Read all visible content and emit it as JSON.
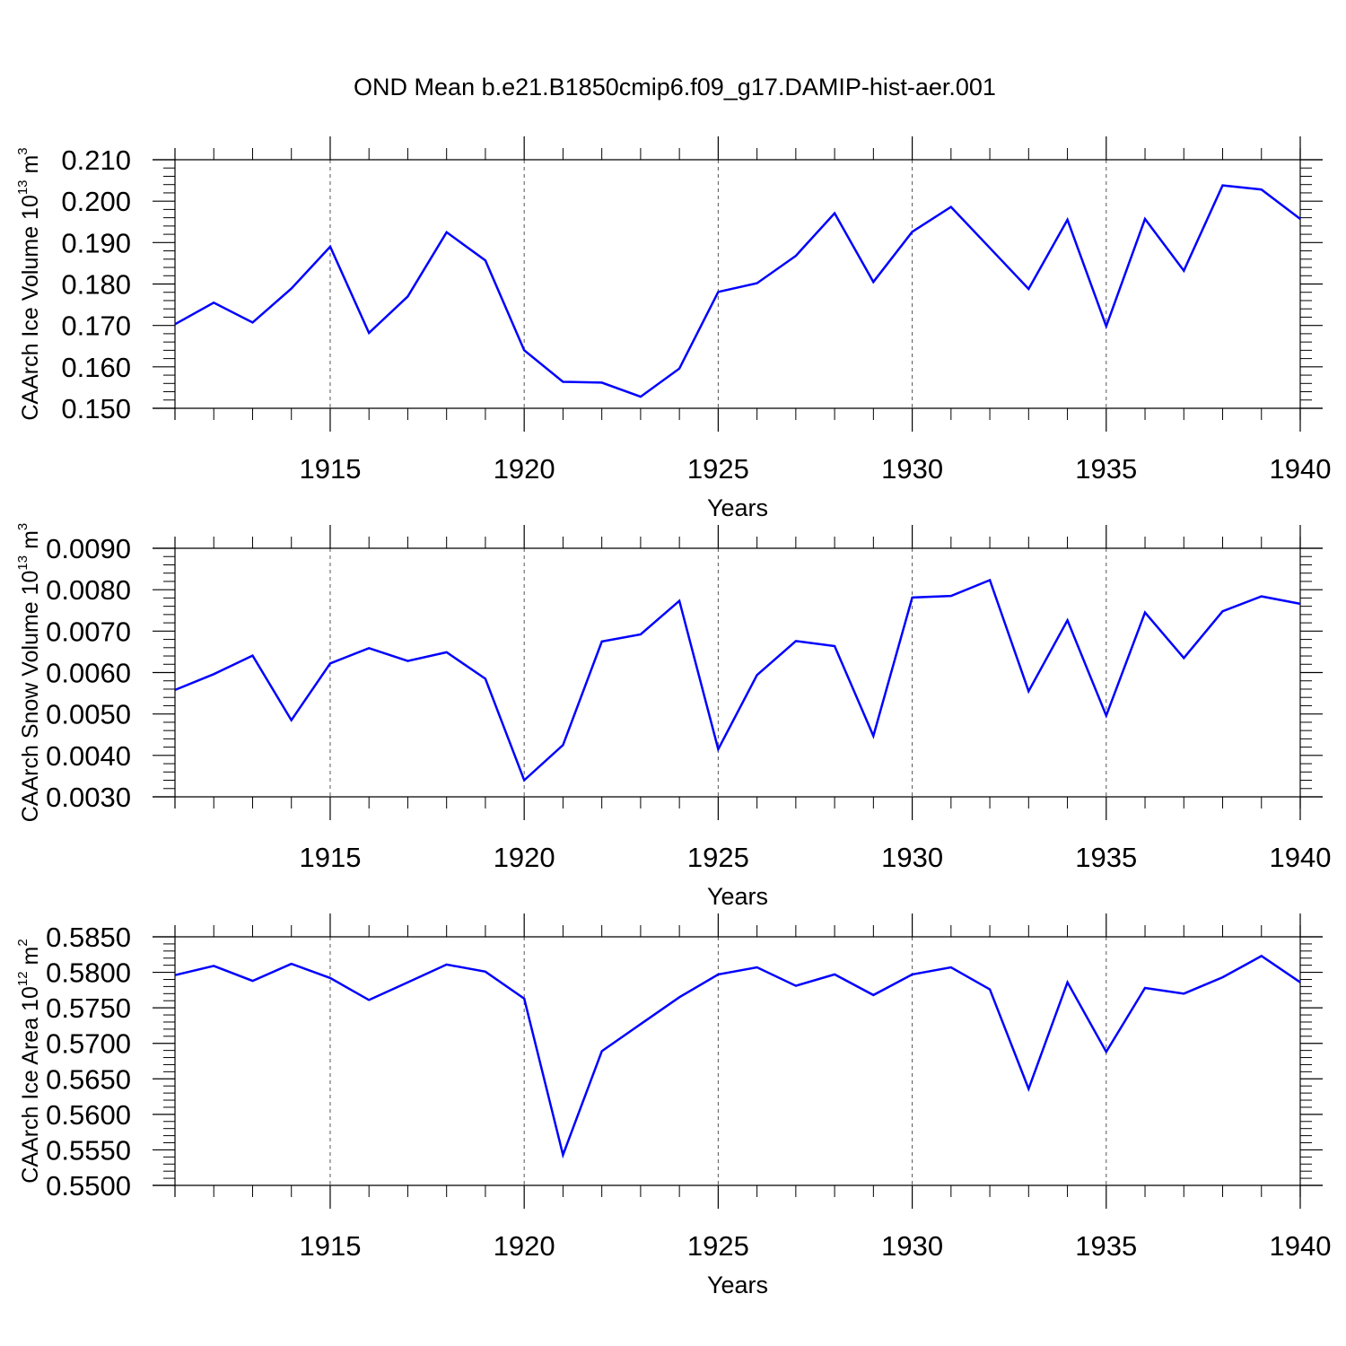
{
  "title": "OND Mean b.e21.B1850cmip6.f09_g17.DAMIP-hist-aer.001",
  "chart_data": [
    {
      "type": "line",
      "name": "ice-volume",
      "ylabel": {
        "prefix": "CAArch Ice Volume 10",
        "exp1": "13",
        "unit": " m",
        "exp2": "3"
      },
      "xlabel": "Years",
      "xlim": [
        1911,
        1940
      ],
      "ylim": [
        0.15,
        0.21
      ],
      "xticks": [
        1915,
        1920,
        1925,
        1930,
        1935,
        1940
      ],
      "xtick_labels": [
        "1915",
        "1920",
        "1925",
        "1930",
        "1935",
        "1940"
      ],
      "yticks": [
        0.15,
        0.16,
        0.17,
        0.18,
        0.19,
        0.2,
        0.21
      ],
      "ytick_labels": [
        "0.150",
        "0.160",
        "0.170",
        "0.180",
        "0.190",
        "0.200",
        "0.210"
      ],
      "x": [
        1911,
        1912,
        1913,
        1914,
        1915,
        1916,
        1917,
        1918,
        1919,
        1920,
        1921,
        1922,
        1923,
        1924,
        1925,
        1926,
        1927,
        1928,
        1929,
        1930,
        1931,
        1932,
        1933,
        1934,
        1935,
        1936,
        1937,
        1938,
        1939,
        1940
      ],
      "values": [
        0.1703,
        0.1755,
        0.1707,
        0.1789,
        0.189,
        0.1682,
        0.177,
        0.1925,
        0.1857,
        0.164,
        0.1564,
        0.1562,
        0.1528,
        0.1596,
        0.1781,
        0.1802,
        0.1868,
        0.1971,
        0.1805,
        0.1926,
        0.1986,
        0.1887,
        0.1788,
        0.1955,
        0.1698,
        0.1957,
        0.1832,
        0.2038,
        0.2028,
        0.1957
      ],
      "color": "#0000ff"
    },
    {
      "type": "line",
      "name": "snow-volume",
      "ylabel": {
        "prefix": "CAArch Snow Volume 10",
        "exp1": "13",
        "unit": " m",
        "exp2": "3"
      },
      "xlabel": "Years",
      "xlim": [
        1911,
        1940
      ],
      "ylim": [
        0.003,
        0.009
      ],
      "xticks": [
        1915,
        1920,
        1925,
        1930,
        1935,
        1940
      ],
      "xtick_labels": [
        "1915",
        "1920",
        "1925",
        "1930",
        "1935",
        "1940"
      ],
      "yticks": [
        0.003,
        0.004,
        0.005,
        0.006,
        0.007,
        0.008,
        0.009
      ],
      "ytick_labels": [
        "0.0030",
        "0.0040",
        "0.0050",
        "0.0060",
        "0.0070",
        "0.0080",
        "0.0090"
      ],
      "x": [
        1911,
        1912,
        1913,
        1914,
        1915,
        1916,
        1917,
        1918,
        1919,
        1920,
        1921,
        1922,
        1923,
        1924,
        1925,
        1926,
        1927,
        1928,
        1929,
        1930,
        1931,
        1932,
        1933,
        1934,
        1935,
        1936,
        1937,
        1938,
        1939,
        1940
      ],
      "values": [
        0.00558,
        0.00596,
        0.00641,
        0.00485,
        0.00622,
        0.00659,
        0.00628,
        0.00649,
        0.00585,
        0.0034,
        0.00425,
        0.00675,
        0.00692,
        0.00773,
        0.00415,
        0.00594,
        0.00676,
        0.00664,
        0.00447,
        0.00781,
        0.00785,
        0.00823,
        0.00555,
        0.00726,
        0.00496,
        0.00745,
        0.00635,
        0.00748,
        0.00784,
        0.00766
      ],
      "color": "#0000ff"
    },
    {
      "type": "line",
      "name": "ice-area",
      "ylabel": {
        "prefix": "CAArch Ice Area 10",
        "exp1": "12",
        "unit": " m",
        "exp2": "2"
      },
      "xlabel": "Years",
      "xlim": [
        1911,
        1940
      ],
      "ylim": [
        0.55,
        0.585
      ],
      "xticks": [
        1915,
        1920,
        1925,
        1930,
        1935,
        1940
      ],
      "xtick_labels": [
        "1915",
        "1920",
        "1925",
        "1930",
        "1935",
        "1940"
      ],
      "yticks": [
        0.55,
        0.555,
        0.56,
        0.565,
        0.57,
        0.575,
        0.58,
        0.585
      ],
      "ytick_labels": [
        "0.5500",
        "0.5550",
        "0.5600",
        "0.5650",
        "0.5700",
        "0.5750",
        "0.5800",
        "0.5850"
      ],
      "x": [
        1911,
        1912,
        1913,
        1914,
        1915,
        1916,
        1917,
        1918,
        1919,
        1920,
        1921,
        1922,
        1923,
        1924,
        1925,
        1926,
        1927,
        1928,
        1929,
        1930,
        1931,
        1932,
        1933,
        1934,
        1935,
        1936,
        1937,
        1938,
        1939,
        1940
      ],
      "values": [
        0.5796,
        0.5809,
        0.5788,
        0.5812,
        0.5792,
        0.5761,
        0.5786,
        0.5811,
        0.5801,
        0.5763,
        0.5543,
        0.5689,
        0.5727,
        0.5765,
        0.5797,
        0.5807,
        0.5781,
        0.5797,
        0.5768,
        0.5797,
        0.5807,
        0.5776,
        0.5636,
        0.5786,
        0.5688,
        0.5778,
        0.577,
        0.5793,
        0.5823,
        0.5786
      ],
      "color": "#0000ff"
    }
  ]
}
